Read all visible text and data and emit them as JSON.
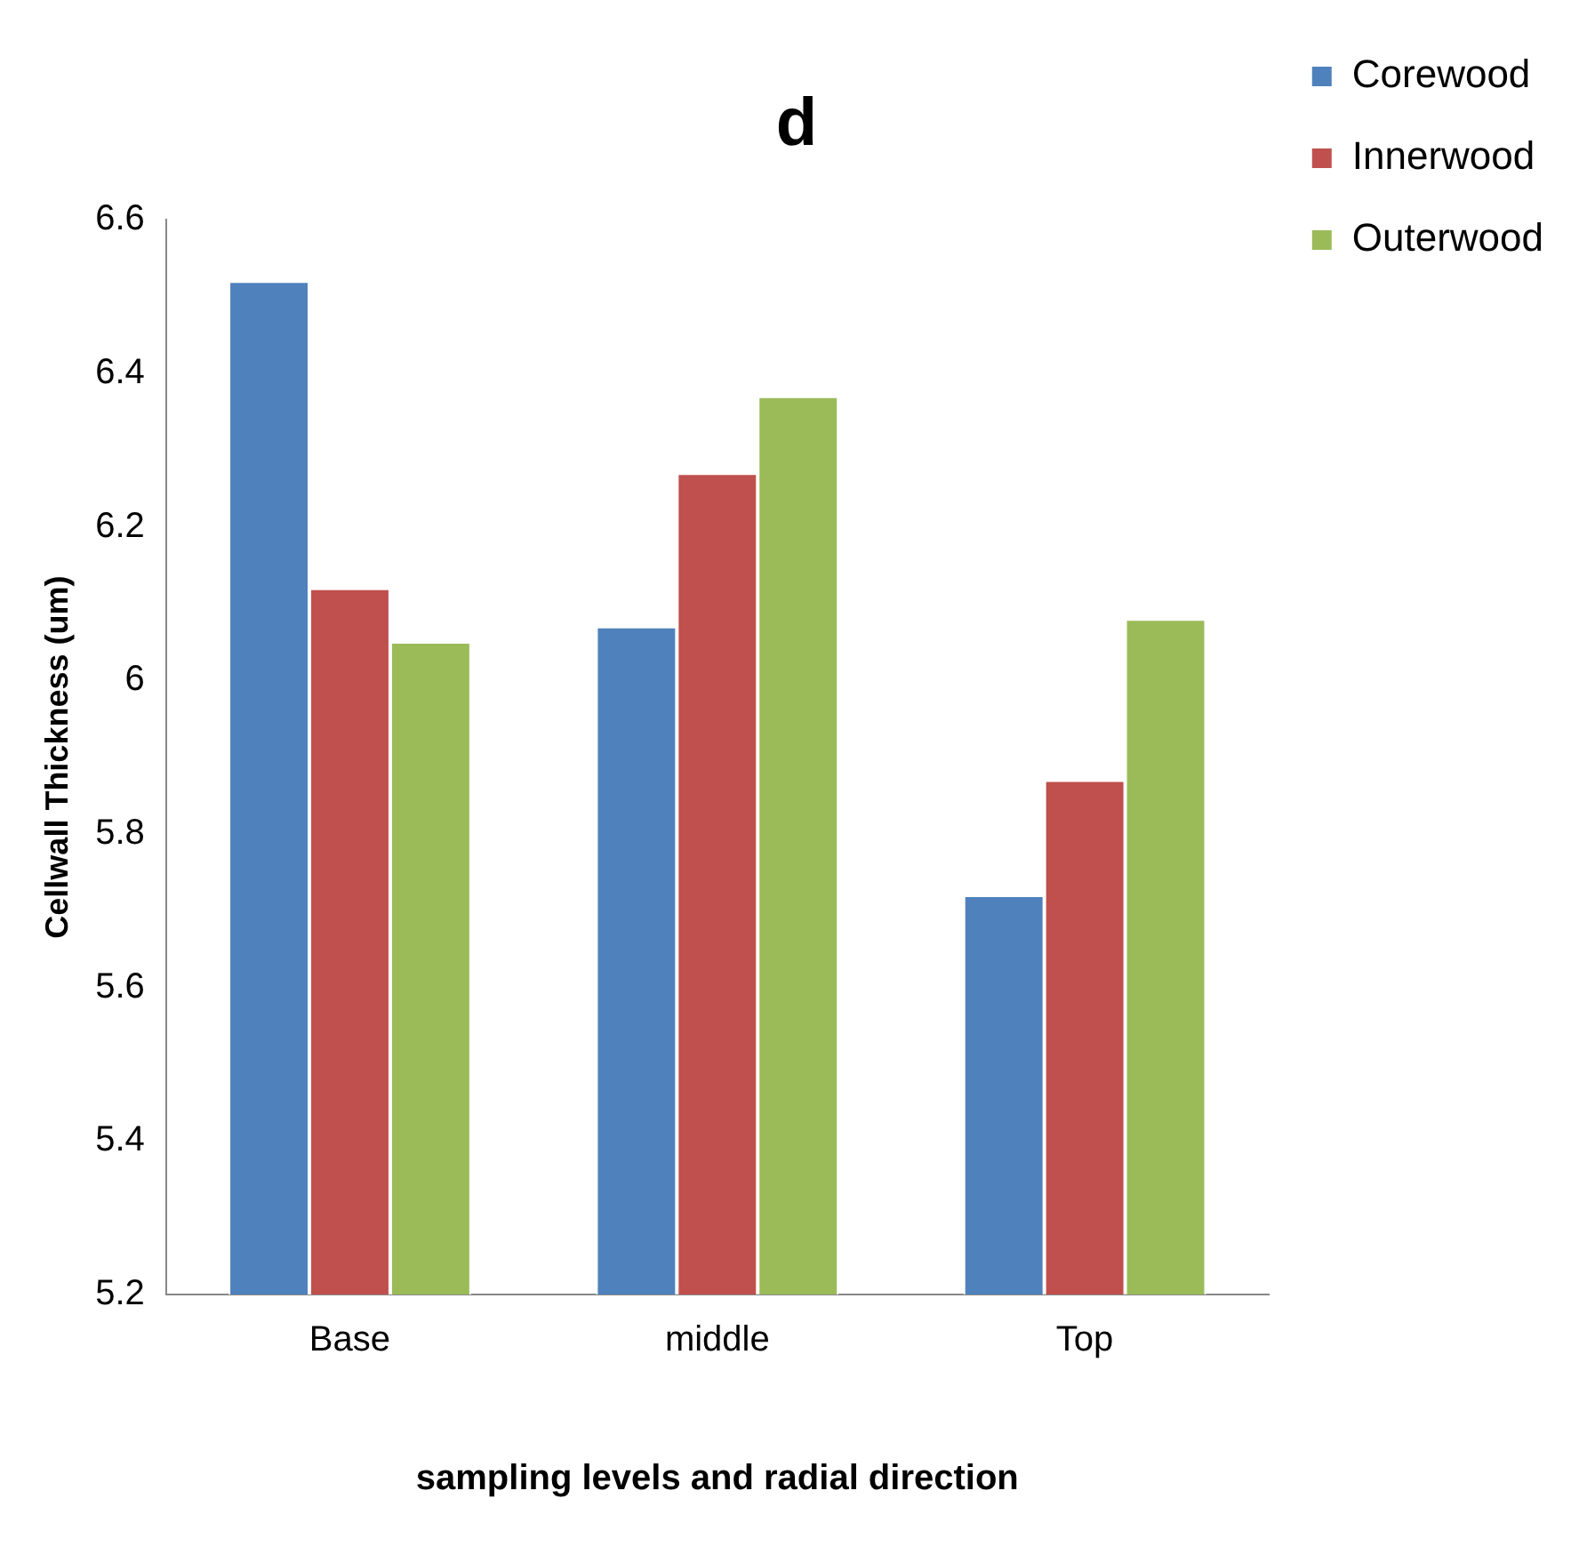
{
  "chart_data": {
    "type": "bar",
    "title": "d",
    "xlabel": "sampling levels and radial direction",
    "ylabel": "Cellwall Thickness (um)",
    "categories": [
      "Base",
      "middle",
      "Top"
    ],
    "series": [
      {
        "name": "Corewood",
        "color": "#4f81bd",
        "values": [
          6.52,
          6.07,
          5.72
        ]
      },
      {
        "name": "Innerwood",
        "color": "#c0504d",
        "values": [
          6.12,
          6.27,
          5.87
        ]
      },
      {
        "name": "Outerwood",
        "color": "#9bbb59",
        "values": [
          6.05,
          6.37,
          6.08
        ]
      }
    ],
    "ylim": [
      5.2,
      6.6
    ],
    "yticks": [
      5.2,
      5.4,
      5.6,
      5.8,
      6,
      6.2,
      6.4,
      6.6
    ],
    "grid": false,
    "legend": "top right"
  }
}
